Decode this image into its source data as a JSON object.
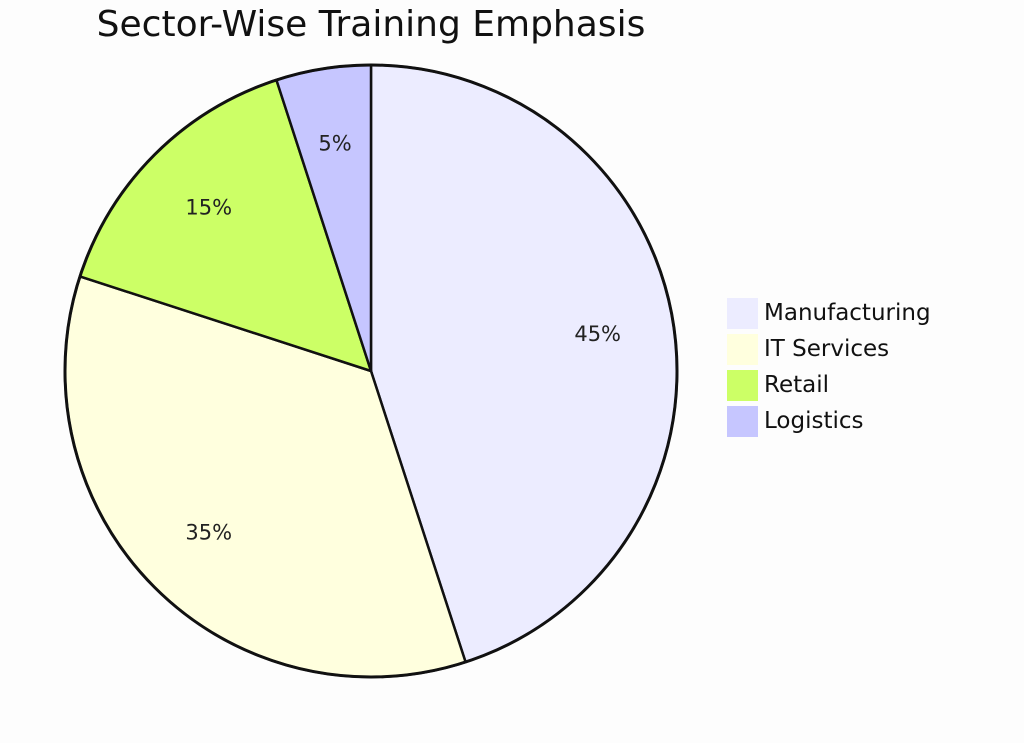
{
  "chart_data": {
    "type": "pie",
    "title": "Sector-Wise Training Emphasis",
    "slices": [
      {
        "label": "Manufacturing",
        "value": 45,
        "display": "45%",
        "color": "#ececff"
      },
      {
        "label": "IT Services",
        "value": 35,
        "display": "35%",
        "color": "#ffffde"
      },
      {
        "label": "Retail",
        "value": 15,
        "display": "15%",
        "color": "#ccff66"
      },
      {
        "label": "Logistics",
        "value": 5,
        "display": "5%",
        "color": "#c6c6ff"
      }
    ],
    "start": "top",
    "direction": "clockwise",
    "legend_position": "right"
  }
}
